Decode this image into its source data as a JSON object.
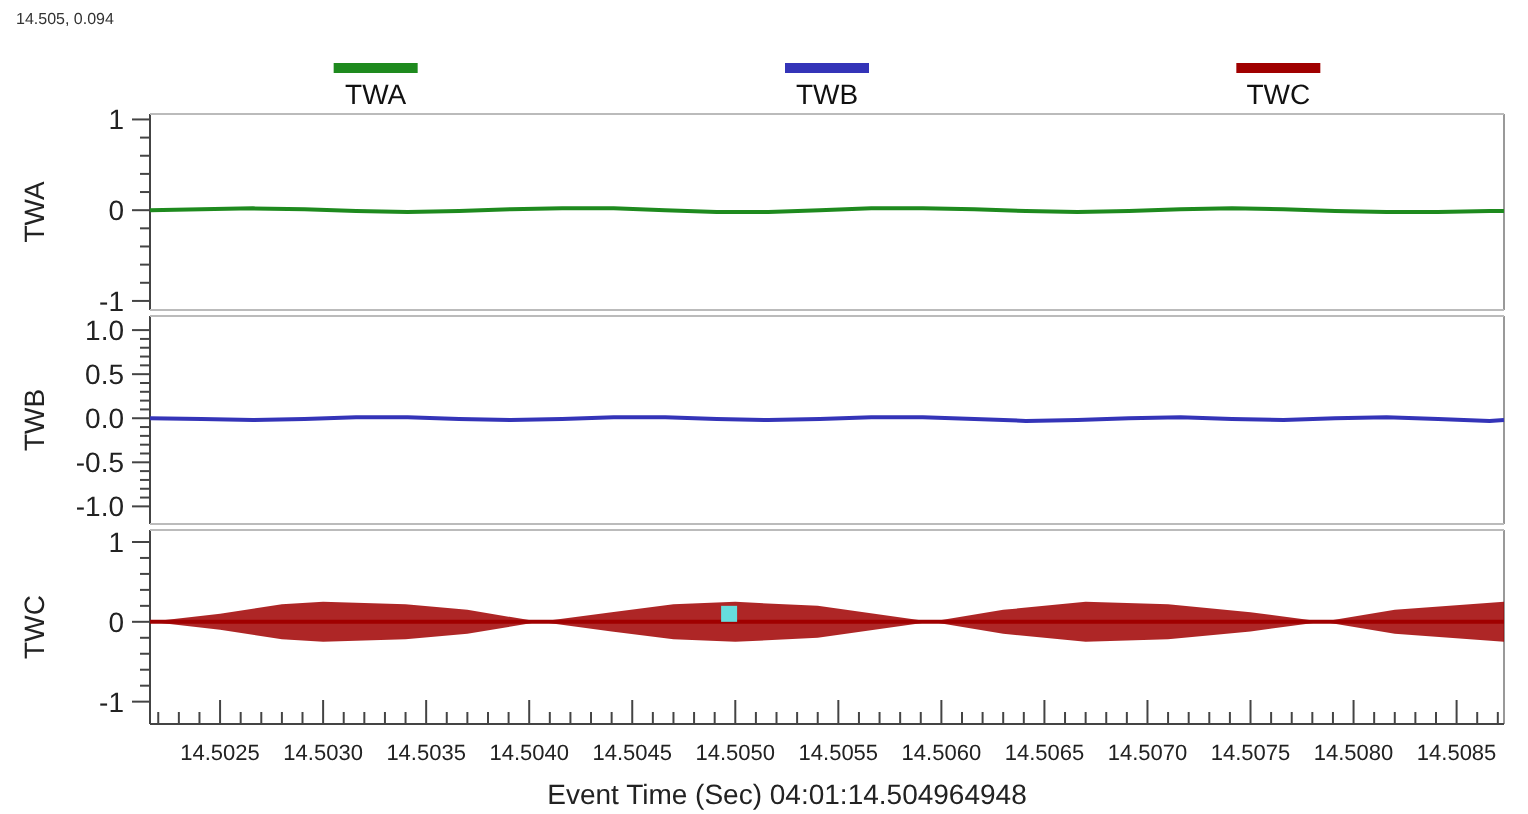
{
  "chart_data": [
    {
      "type": "line",
      "ylabel": "TWA",
      "legend": "top",
      "grid": false,
      "tick_labels": "y",
      "annotations": [
        "14.505, 0.094"
      ],
      "xlim": [
        14.50216,
        14.50873
      ],
      "ylim": [
        -1.1,
        1.06
      ],
      "yticks": [
        1,
        {
          "value": 0.8,
          "label": null
        },
        {
          "value": 0.6,
          "label": null
        },
        {
          "value": 0.4,
          "label": null
        },
        {
          "value": 0.2,
          "label": null
        },
        0,
        {
          "value": -0.2,
          "label": null
        },
        {
          "value": -0.4,
          "label": null
        },
        {
          "value": -0.6,
          "label": null
        },
        {
          "value": -0.8,
          "label": null
        },
        -1
      ],
      "x": [
        14.50216,
        14.50241,
        14.50266,
        14.50291,
        14.50316,
        14.50341,
        14.50366,
        14.50391,
        14.50416,
        14.50441,
        14.50466,
        14.50491,
        14.50516,
        14.50541,
        14.50566,
        14.50591,
        14.50616,
        14.50641,
        14.50666,
        14.50691,
        14.50716,
        14.50741,
        14.50766,
        14.50791,
        14.50816,
        14.50841,
        14.50866,
        14.50873
      ],
      "series": [
        {
          "name": "TWA",
          "color": "#1e8a1e",
          "values": [
            0,
            0.01,
            0.02,
            0.01,
            -0.01,
            -0.02,
            -0.01,
            0.01,
            0.02,
            0.02,
            0,
            -0.02,
            -0.02,
            0,
            0.02,
            0.02,
            0.01,
            -0.01,
            -0.02,
            -0.01,
            0.01,
            0.02,
            0.01,
            -0.01,
            -0.02,
            -0.02,
            -0.01,
            -0.01
          ]
        }
      ]
    },
    {
      "type": "line",
      "ylabel": "TWB",
      "legend": "top",
      "grid": false,
      "tick_labels": "y",
      "xlim": [
        14.50216,
        14.50873
      ],
      "ylim": [
        -1.2,
        1.16
      ],
      "yticks": [
        {
          "value": 1.0,
          "label": "1.0"
        },
        {
          "value": 0.9,
          "label": null
        },
        {
          "value": 0.8,
          "label": null
        },
        {
          "value": 0.7,
          "label": null
        },
        {
          "value": 0.6,
          "label": null
        },
        {
          "value": 0.5,
          "label": "0.5"
        },
        {
          "value": 0.4,
          "label": null
        },
        {
          "value": 0.3,
          "label": null
        },
        {
          "value": 0.2,
          "label": null
        },
        {
          "value": 0.1,
          "label": null
        },
        {
          "value": 0,
          "label": "0.0"
        },
        {
          "value": -0.1,
          "label": null
        },
        {
          "value": -0.2,
          "label": null
        },
        {
          "value": -0.3,
          "label": null
        },
        {
          "value": -0.4,
          "label": null
        },
        {
          "value": -0.5,
          "label": "-0.5"
        },
        {
          "value": -0.6,
          "label": null
        },
        {
          "value": -0.7,
          "label": null
        },
        {
          "value": -0.8,
          "label": null
        },
        {
          "value": -0.9,
          "label": null
        },
        {
          "value": -1.0,
          "label": "-1.0"
        }
      ],
      "x": [
        14.50216,
        14.50241,
        14.50266,
        14.50291,
        14.50316,
        14.50341,
        14.50366,
        14.50391,
        14.50416,
        14.50441,
        14.50466,
        14.50491,
        14.50516,
        14.50541,
        14.50566,
        14.50591,
        14.50616,
        14.50641,
        14.50666,
        14.50691,
        14.50716,
        14.50741,
        14.50766,
        14.50791,
        14.50816,
        14.50841,
        14.50866,
        14.50873
      ],
      "series": [
        {
          "name": "TWB",
          "color": "#3434b8",
          "values": [
            0,
            -0.01,
            -0.02,
            -0.01,
            0.01,
            0.01,
            -0.01,
            -0.02,
            -0.01,
            0.01,
            0.01,
            -0.01,
            -0.02,
            -0.01,
            0.01,
            0.01,
            -0.01,
            -0.03,
            -0.02,
            0,
            0.01,
            -0.01,
            -0.02,
            0,
            0.01,
            -0.01,
            -0.03,
            -0.02
          ]
        }
      ]
    },
    {
      "type": "line",
      "ylabel": "TWC",
      "xlabel": "Event Time (Sec)  04:01:14.504964948",
      "legend": "top",
      "grid": false,
      "xlim": [
        14.50216,
        14.50873
      ],
      "ylim": [
        -1.28,
        1.15
      ],
      "yticks": [
        1,
        {
          "value": 0.8,
          "label": null
        },
        {
          "value": 0.6,
          "label": null
        },
        {
          "value": 0.4,
          "label": null
        },
        {
          "value": 0.2,
          "label": null
        },
        0,
        {
          "value": -0.2,
          "label": null
        },
        {
          "value": -0.4,
          "label": null
        },
        {
          "value": -0.6,
          "label": null
        },
        {
          "value": -0.8,
          "label": null
        },
        -1
      ],
      "xticks": [
        {
          "value": 14.5022,
          "label": null
        },
        {
          "value": 14.5023,
          "label": null
        },
        {
          "value": 14.5024,
          "label": null
        },
        {
          "value": 14.5025,
          "label": "14.5025"
        },
        {
          "value": 14.5026,
          "label": null
        },
        {
          "value": 14.5027,
          "label": null
        },
        {
          "value": 14.5028,
          "label": null
        },
        {
          "value": 14.5029,
          "label": null
        },
        {
          "value": 14.503,
          "label": "14.5030"
        },
        {
          "value": 14.5031,
          "label": null
        },
        {
          "value": 14.5032,
          "label": null
        },
        {
          "value": 14.5033,
          "label": null
        },
        {
          "value": 14.5034,
          "label": null
        },
        {
          "value": 14.5035,
          "label": "14.5035"
        },
        {
          "value": 14.5036,
          "label": null
        },
        {
          "value": 14.5037,
          "label": null
        },
        {
          "value": 14.5038,
          "label": null
        },
        {
          "value": 14.5039,
          "label": null
        },
        {
          "value": 14.504,
          "label": "14.5040"
        },
        {
          "value": 14.5041,
          "label": null
        },
        {
          "value": 14.5042,
          "label": null
        },
        {
          "value": 14.5043,
          "label": null
        },
        {
          "value": 14.5044,
          "label": null
        },
        {
          "value": 14.5045,
          "label": "14.5045"
        },
        {
          "value": 14.5046,
          "label": null
        },
        {
          "value": 14.5047,
          "label": null
        },
        {
          "value": 14.5048,
          "label": null
        },
        {
          "value": 14.5049,
          "label": null
        },
        {
          "value": 14.505,
          "label": "14.5050"
        },
        {
          "value": 14.5051,
          "label": null
        },
        {
          "value": 14.5052,
          "label": null
        },
        {
          "value": 14.5053,
          "label": null
        },
        {
          "value": 14.5054,
          "label": null
        },
        {
          "value": 14.5055,
          "label": "14.5055"
        },
        {
          "value": 14.5056,
          "label": null
        },
        {
          "value": 14.5057,
          "label": null
        },
        {
          "value": 14.5058,
          "label": null
        },
        {
          "value": 14.5059,
          "label": null
        },
        {
          "value": 14.506,
          "label": "14.5060"
        },
        {
          "value": 14.5061,
          "label": null
        },
        {
          "value": 14.5062,
          "label": null
        },
        {
          "value": 14.5063,
          "label": null
        },
        {
          "value": 14.5064,
          "label": null
        },
        {
          "value": 14.5065,
          "label": "14.5065"
        },
        {
          "value": 14.5066,
          "label": null
        },
        {
          "value": 14.5067,
          "label": null
        },
        {
          "value": 14.5068,
          "label": null
        },
        {
          "value": 14.5069,
          "label": null
        },
        {
          "value": 14.507,
          "label": "14.5070"
        },
        {
          "value": 14.5071,
          "label": null
        },
        {
          "value": 14.5072,
          "label": null
        },
        {
          "value": 14.5073,
          "label": null
        },
        {
          "value": 14.5074,
          "label": null
        },
        {
          "value": 14.5075,
          "label": "14.5075"
        },
        {
          "value": 14.5076,
          "label": null
        },
        {
          "value": 14.5077,
          "label": null
        },
        {
          "value": 14.5078,
          "label": null
        },
        {
          "value": 14.5079,
          "label": null
        },
        {
          "value": 14.508,
          "label": "14.5080"
        },
        {
          "value": 14.5081,
          "label": null
        },
        {
          "value": 14.5082,
          "label": null
        },
        {
          "value": 14.5083,
          "label": null
        },
        {
          "value": 14.5084,
          "label": null
        },
        {
          "value": 14.5085,
          "label": "14.5085"
        },
        {
          "value": 14.5086,
          "label": null
        },
        {
          "value": 14.5087,
          "label": null
        }
      ],
      "series": [
        {
          "name": "TWC",
          "color": "#a00000",
          "x": [
            14.50216,
            14.5025,
            14.5028,
            14.503,
            14.5034,
            14.5037,
            14.50405,
            14.5044,
            14.5047,
            14.505,
            14.5054,
            14.50595,
            14.5063,
            14.5067,
            14.5071,
            14.5075,
            14.50785,
            14.5082,
            14.50873
          ],
          "values": [
            0,
            0,
            0,
            0,
            0,
            0,
            0,
            0,
            0,
            0,
            0,
            0,
            0,
            0,
            0,
            0,
            0,
            0,
            0
          ],
          "lower": [
            0,
            -0.1,
            -0.22,
            -0.25,
            -0.22,
            -0.15,
            0,
            -0.12,
            -0.22,
            -0.25,
            -0.2,
            0,
            -0.15,
            -0.25,
            -0.22,
            -0.12,
            0,
            -0.15,
            -0.25
          ],
          "upper": [
            0,
            0.1,
            0.22,
            0.25,
            0.22,
            0.15,
            0,
            0.12,
            0.22,
            0.25,
            0.2,
            0,
            0.15,
            0.25,
            0.22,
            0.12,
            0,
            0.15,
            0.25
          ]
        },
        {
          "type": "scatter",
          "color": "#66dddd",
          "marker": "square",
          "x": [
            14.50497
          ],
          "values": [
            0.1
          ]
        }
      ]
    }
  ]
}
